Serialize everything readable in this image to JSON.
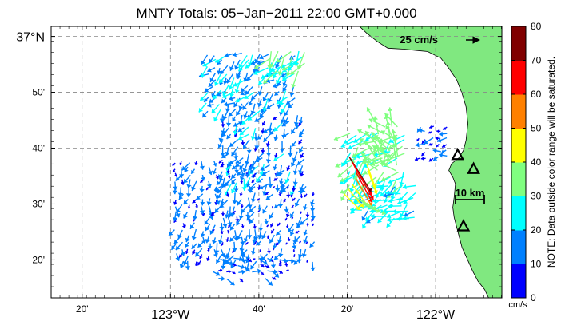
{
  "chart_data": {
    "type": "vector-map",
    "title": "MNTY Totals: 05−Jan−2011 22:00 GMT+0.000",
    "x_ticks": [
      {
        "lon": -123.3333,
        "label": "20'",
        "size": "small"
      },
      {
        "lon": -123.0,
        "label": "123°W",
        "size": "big"
      },
      {
        "lon": -122.6667,
        "label": "40'",
        "size": "small"
      },
      {
        "lon": -122.3333,
        "label": "20'",
        "size": "small"
      },
      {
        "lon": -122.0,
        "label": "122°W",
        "size": "big"
      }
    ],
    "y_ticks": [
      {
        "lat": 37.0,
        "label": "37°N",
        "size": "big"
      },
      {
        "lat": 36.8333,
        "label": "50'",
        "size": "small"
      },
      {
        "lat": 36.6667,
        "label": "40'",
        "size": "small"
      },
      {
        "lat": 36.5,
        "label": "30'",
        "size": "small"
      },
      {
        "lat": 36.3333,
        "label": "20'",
        "size": "small"
      }
    ],
    "xlim": [
      -123.45,
      -121.75
    ],
    "ylim": [
      36.22,
      37.03
    ],
    "grid": true,
    "grid_style": "dashed",
    "reference_arrow": {
      "label": "25 cm/s",
      "speed": 25
    },
    "scale_bar": {
      "label": "10 km",
      "km": 10
    },
    "colorbar": {
      "min": 0,
      "max": 80,
      "ticks": [
        0,
        10,
        20,
        30,
        40,
        50,
        60,
        70,
        80
      ],
      "unit": "cm/s",
      "note": "NOTE: Data outside color range will be saturated.",
      "colors": [
        "#0000ff",
        "#0080ff",
        "#00ffff",
        "#80ff80",
        "#ffff00",
        "#ff8000",
        "#ff0000",
        "#800000"
      ]
    },
    "land_color": "#80e880",
    "sites": [
      {
        "lon": -121.9167,
        "lat": 36.6458
      },
      {
        "lon": -121.8567,
        "lat": 36.6042
      },
      {
        "lon": -121.895,
        "lat": 36.4333
      }
    ],
    "coastline": [
      [
        -122.3,
        37.04
      ],
      [
        -122.26,
        37.01
      ],
      [
        -122.22,
        36.985
      ],
      [
        -122.18,
        36.965
      ],
      [
        -122.12,
        36.962
      ],
      [
        -122.07,
        36.958
      ],
      [
        -122.03,
        36.955
      ],
      [
        -121.98,
        36.935
      ],
      [
        -121.95,
        36.905
      ],
      [
        -121.92,
        36.87
      ],
      [
        -121.9,
        36.83
      ],
      [
        -121.885,
        36.79
      ],
      [
        -121.878,
        36.74
      ],
      [
        -121.885,
        36.69
      ],
      [
        -121.895,
        36.66
      ],
      [
        -121.912,
        36.638
      ],
      [
        -121.94,
        36.62
      ],
      [
        -121.95,
        36.6
      ],
      [
        -121.935,
        36.58
      ],
      [
        -121.925,
        36.56
      ],
      [
        -121.93,
        36.52
      ],
      [
        -121.935,
        36.49
      ],
      [
        -121.93,
        36.46
      ],
      [
        -121.92,
        36.43
      ],
      [
        -121.91,
        36.4
      ],
      [
        -121.9,
        36.37
      ],
      [
        -121.88,
        36.335
      ],
      [
        -121.86,
        36.3
      ],
      [
        -121.84,
        36.27
      ],
      [
        -121.815,
        36.245
      ],
      [
        -121.8,
        36.22
      ]
    ],
    "vector_regions": [
      {
        "lon": [
          -122.86,
          -122.52
        ],
        "lat": [
          36.78,
          36.96
        ],
        "speed": [
          10,
          28
        ],
        "dir": 225
      },
      {
        "lon": [
          -122.62,
          -122.48
        ],
        "lat": [
          36.9,
          36.97
        ],
        "speed": [
          24,
          34
        ],
        "dir": 215
      },
      {
        "lon": [
          -122.8,
          -122.48
        ],
        "lat": [
          36.56,
          36.78
        ],
        "speed": [
          8,
          22
        ],
        "dir": 210
      },
      {
        "lon": [
          -122.98,
          -122.66
        ],
        "lat": [
          36.33,
          36.64
        ],
        "speed": [
          6,
          20
        ],
        "dir": 195
      },
      {
        "lon": [
          -122.66,
          -122.46
        ],
        "lat": [
          36.33,
          36.56
        ],
        "speed": [
          2,
          18
        ],
        "dir": 200
      },
      {
        "lon": [
          -122.84,
          -122.56
        ],
        "lat": [
          36.28,
          36.34
        ],
        "speed": [
          4,
          18
        ],
        "dir": 110
      },
      {
        "lon": [
          -122.32,
          -122.12
        ],
        "lat": [
          36.56,
          36.72
        ],
        "speed": [
          22,
          36
        ],
        "dir": 225
      },
      {
        "lon": [
          -122.22,
          -122.14
        ],
        "lat": [
          36.6,
          36.74
        ],
        "speed": [
          30,
          40
        ],
        "dir": 330
      },
      {
        "lon": [
          -122.28,
          -122.06
        ],
        "lat": [
          36.46,
          36.56
        ],
        "speed": [
          18,
          30
        ],
        "dir": 240
      },
      {
        "lon": [
          -122.06,
          -121.95
        ],
        "lat": [
          36.64,
          36.74
        ],
        "speed": [
          6,
          20
        ],
        "dir": 250
      }
    ],
    "jet_vectors": [
      {
        "lon": -122.325,
        "lat": 36.64,
        "speed": 72,
        "dir": 148
      },
      {
        "lon": -122.315,
        "lat": 36.625,
        "speed": 68,
        "dir": 150
      },
      {
        "lon": -122.305,
        "lat": 36.61,
        "speed": 65,
        "dir": 150
      },
      {
        "lon": -122.3,
        "lat": 36.595,
        "speed": 60,
        "dir": 152
      },
      {
        "lon": -122.3,
        "lat": 36.575,
        "speed": 55,
        "dir": 150
      },
      {
        "lon": -122.315,
        "lat": 36.56,
        "speed": 48,
        "dir": 145
      },
      {
        "lon": -122.33,
        "lat": 36.545,
        "speed": 42,
        "dir": 140
      },
      {
        "lon": -122.345,
        "lat": 36.53,
        "speed": 40,
        "dir": 135
      },
      {
        "lon": -122.31,
        "lat": 36.525,
        "speed": 38,
        "dir": 125
      },
      {
        "lon": -122.29,
        "lat": 36.515,
        "speed": 36,
        "dir": 120
      },
      {
        "lon": -122.275,
        "lat": 36.5,
        "speed": 34,
        "dir": 115
      },
      {
        "lon": -122.255,
        "lat": 36.49,
        "speed": 33,
        "dir": 110
      },
      {
        "lon": -122.26,
        "lat": 36.62,
        "speed": 46,
        "dir": 160
      },
      {
        "lon": -122.255,
        "lat": 36.6,
        "speed": 44,
        "dir": 160
      }
    ]
  }
}
